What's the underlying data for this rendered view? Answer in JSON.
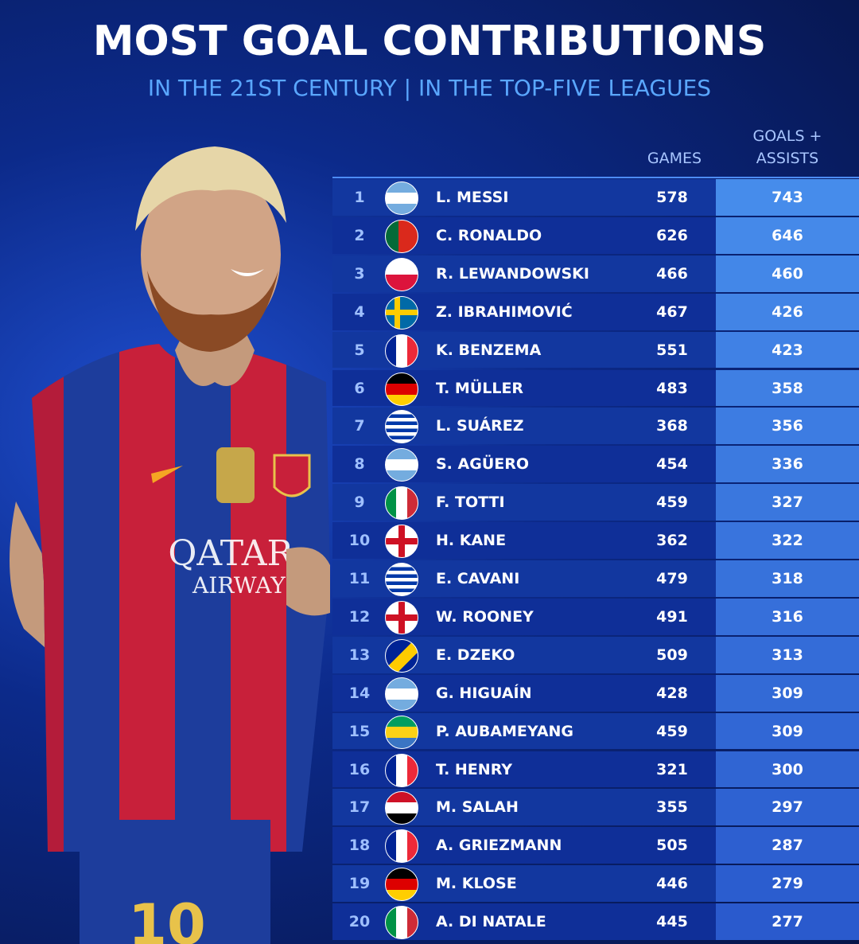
{
  "header": {
    "title": "MOST GOAL CONTRIBUTIONS",
    "subtitle": "IN THE 21ST CENTURY | IN THE TOP-FIVE LEAGUES"
  },
  "table": {
    "columns": {
      "games": "GAMES",
      "goals_assists": "GOALS + ASSISTS"
    },
    "rows": [
      {
        "rank": 1,
        "name": "L. MESSI",
        "games": 578,
        "goals_assists": 743
      },
      {
        "rank": 2,
        "name": "C. RONALDO",
        "games": 626,
        "goals_assists": 646
      },
      {
        "rank": 3,
        "name": "R. LEWANDOWSKI",
        "games": 466,
        "goals_assists": 460
      },
      {
        "rank": 4,
        "name": "Z. IBRAHIMOVIĆ",
        "games": 467,
        "goals_assists": 426
      },
      {
        "rank": 5,
        "name": "K. BENZEMA",
        "games": 551,
        "goals_assists": 423
      },
      {
        "rank": 6,
        "name": "T. MÜLLER",
        "games": 483,
        "goals_assists": 358
      },
      {
        "rank": 7,
        "name": "L. SUÁREZ",
        "games": 368,
        "goals_assists": 356
      },
      {
        "rank": 8,
        "name": "S. AGÜERO",
        "games": 454,
        "goals_assists": 336
      },
      {
        "rank": 9,
        "name": "F. TOTTI",
        "games": 459,
        "goals_assists": 327
      },
      {
        "rank": 10,
        "name": "H. KANE",
        "games": 362,
        "goals_assists": 322
      },
      {
        "rank": 11,
        "name": "E. CAVANI",
        "games": 479,
        "goals_assists": 318
      },
      {
        "rank": 12,
        "name": "W. ROONEY",
        "games": 491,
        "goals_assists": 316
      },
      {
        "rank": 13,
        "name": "E. DZEKO",
        "games": 509,
        "goals_assists": 313
      },
      {
        "rank": 14,
        "name": "G. HIGUAÍN",
        "games": 428,
        "goals_assists": 309
      },
      {
        "rank": 15,
        "name": "P. AUBAMEYANG",
        "games": 459,
        "goals_assists": 309
      },
      {
        "rank": 16,
        "name": "T. HENRY",
        "games": 321,
        "goals_assists": 300
      },
      {
        "rank": 17,
        "name": "M. SALAH",
        "games": 355,
        "goals_assists": 297
      },
      {
        "rank": 18,
        "name": "A. GRIEZMANN",
        "games": 505,
        "goals_assists": 287
      },
      {
        "rank": 19,
        "name": "M. KLOSE",
        "games": 446,
        "goals_assists": 279
      },
      {
        "rank": 20,
        "name": "A. DI NATALE",
        "games": 445,
        "goals_assists": 277
      }
    ]
  }
}
